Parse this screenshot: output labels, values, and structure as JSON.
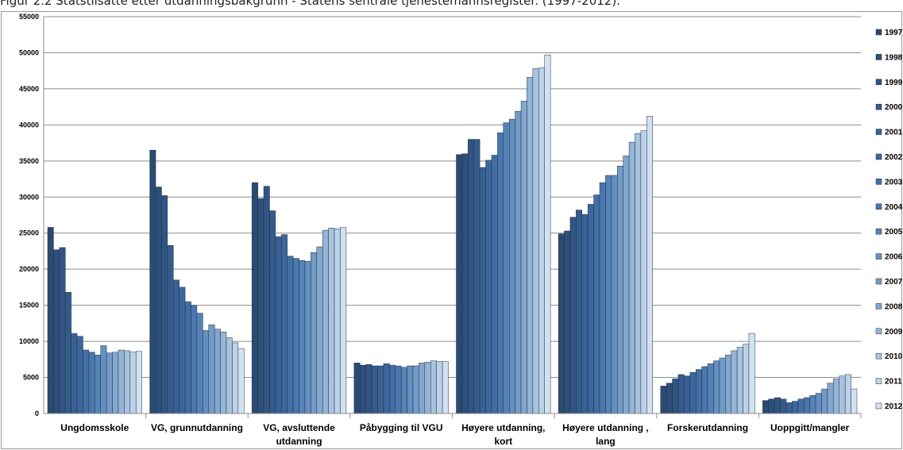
{
  "caption": "Figur 2.2 Statstilsatte etter utdanningsbakgrunn - Statens sentrale tjenestemannsregister. (1997-2012).",
  "chart_data": {
    "type": "bar",
    "title": "Figur 2.2 Statstilsatte etter utdanningsbakgrunn - Statens sentrale tjenestemannsregister. (1997-2012).",
    "xlabel": "",
    "ylabel": "",
    "ylim": [
      0,
      55000
    ],
    "yticks": [
      0,
      5000,
      10000,
      15000,
      20000,
      25000,
      30000,
      35000,
      40000,
      45000,
      50000,
      55000
    ],
    "grid": true,
    "legend_position": "right",
    "categories": [
      [
        "Ungdomsskole"
      ],
      [
        "VG, grunnutdanning"
      ],
      [
        "VG, avsluttende",
        "utdanning"
      ],
      [
        "Påbygging til VGU"
      ],
      [
        "Høyere utdanning,",
        "kort"
      ],
      [
        "Høyere utdanning ,",
        "lang"
      ],
      [
        "Forskerutdanning"
      ],
      [
        "Uoppgitt/mangler"
      ]
    ],
    "series": [
      {
        "name": "1997",
        "color": "#2b4a72",
        "values": [
          25800,
          36500,
          32000,
          7000,
          35900,
          24900,
          3800,
          1800
        ]
      },
      {
        "name": "1998",
        "color": "#2e4f7a",
        "values": [
          22700,
          31400,
          29800,
          6700,
          36000,
          25300,
          4200,
          2000
        ]
      },
      {
        "name": "1999",
        "color": "#315582",
        "values": [
          23000,
          30200,
          31500,
          6800,
          38000,
          27200,
          4800,
          2200
        ]
      },
      {
        "name": "2000",
        "color": "#355b8b",
        "values": [
          16800,
          23300,
          28100,
          6600,
          38000,
          28200,
          5400,
          2000
        ]
      },
      {
        "name": "2001",
        "color": "#396194",
        "values": [
          11100,
          18500,
          24500,
          6600,
          34100,
          27600,
          5200,
          1500
        ]
      },
      {
        "name": "2002",
        "color": "#3d679c",
        "values": [
          10700,
          17500,
          24800,
          6900,
          35100,
          29000,
          5700,
          1700
        ]
      },
      {
        "name": "2003",
        "color": "#436ea5",
        "values": [
          8800,
          15500,
          21800,
          6700,
          35800,
          30300,
          6100,
          2000
        ]
      },
      {
        "name": "2004",
        "color": "#4a77ad",
        "values": [
          8500,
          15000,
          21500,
          6600,
          38900,
          32000,
          6500,
          2200
        ]
      },
      {
        "name": "2005",
        "color": "#5683b6",
        "values": [
          8100,
          13900,
          21200,
          6400,
          40300,
          33000,
          6900,
          2500
        ]
      },
      {
        "name": "2006",
        "color": "#648fbe",
        "values": [
          9400,
          11500,
          21100,
          6600,
          40800,
          33000,
          7300,
          2800
        ]
      },
      {
        "name": "2007",
        "color": "#739bc6",
        "values": [
          8400,
          12300,
          22300,
          6600,
          41900,
          34300,
          7700,
          3400
        ]
      },
      {
        "name": "2008",
        "color": "#83a7ce",
        "values": [
          8500,
          11700,
          23100,
          7000,
          43300,
          35700,
          8100,
          4200
        ]
      },
      {
        "name": "2009",
        "color": "#95b5d6",
        "values": [
          8800,
          11300,
          25400,
          7100,
          46600,
          37600,
          8700,
          4800
        ]
      },
      {
        "name": "2010",
        "color": "#a8c3de",
        "values": [
          8700,
          10500,
          25700,
          7300,
          47800,
          38800,
          9200,
          5200
        ]
      },
      {
        "name": "2011",
        "color": "#bcd2e8",
        "values": [
          8500,
          9800,
          25600,
          7200,
          47900,
          39200,
          9600,
          5400
        ]
      },
      {
        "name": "2012",
        "color": "#d2e2f1",
        "values": [
          8600,
          9000,
          25800,
          7200,
          49700,
          41200,
          11100,
          3400
        ]
      }
    ]
  }
}
